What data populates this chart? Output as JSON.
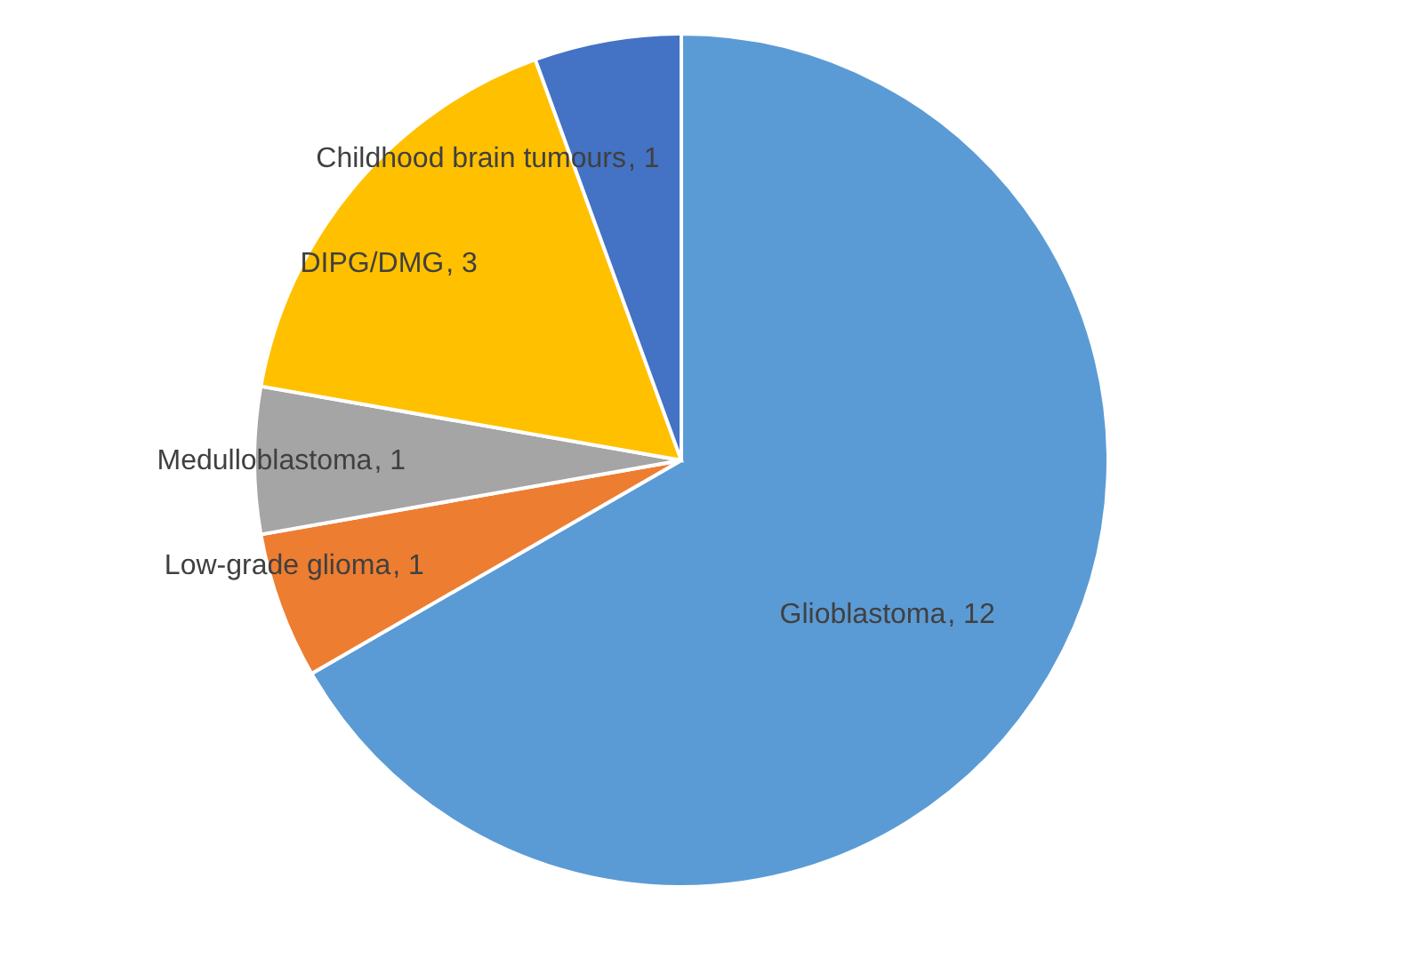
{
  "chart_data": {
    "type": "pie",
    "categories": [
      "Glioblastoma",
      "Low-grade glioma",
      "Medulloblastoma",
      "DIPG/DMG",
      "Childhood brain tumours"
    ],
    "values": [
      12,
      1,
      1,
      3,
      1
    ],
    "colors": [
      "#5b9bd5",
      "#ed7d31",
      "#a5a5a5",
      "#ffc000",
      "#4472c4"
    ],
    "value_labels": [
      ", 12",
      ", 1",
      ", 1",
      ", 3",
      ", 1"
    ]
  }
}
